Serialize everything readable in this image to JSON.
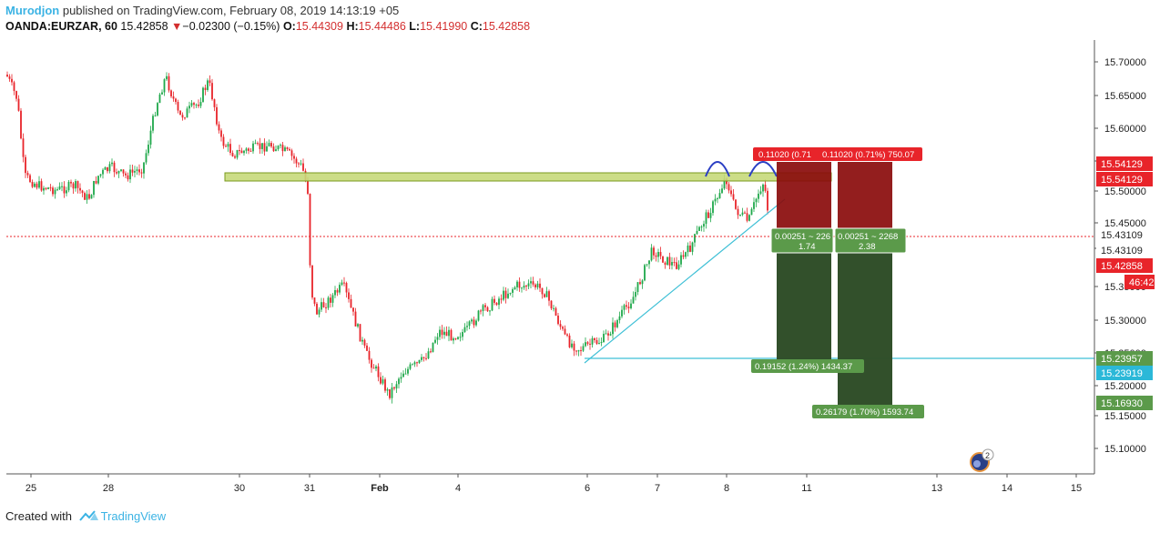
{
  "header": {
    "author": "Murodjon",
    "published_text": "published on TradingView.com, February 08, 2019 14:13:19 +05",
    "symbol": "OANDA:EURZAR, 60",
    "last": "15.42858",
    "change": "−0.02300 (−0.15%)",
    "open_label": "O:",
    "open": "15.44309",
    "high_label": "H:",
    "high": "15.44486",
    "low_label": "L:",
    "low": "15.41990",
    "close_label": "C:",
    "close": "15.42858"
  },
  "colors": {
    "up": "#1fa84a",
    "down": "#e8242a",
    "trendline": "#3fc0d6",
    "zone_fill": "#c6d97a",
    "zone_stroke": "#7a9a1e",
    "arc": "#2b3fc4",
    "stop_fill": "#8a0b0b",
    "target_fill": "#2e4d27",
    "price_line": "#e8242a",
    "label_red": "#e8242a",
    "label_green": "#5b9a4a",
    "label_cyan": "#2bb8d8"
  },
  "price_axis": {
    "ticks": [
      "15.70000",
      "15.65000",
      "15.60000",
      "15.55000",
      "15.50000",
      "15.45000",
      "15.40000",
      "15.35000",
      "15.30000",
      "15.25000",
      "15.20000",
      "15.15000",
      "15.10000"
    ],
    "labels": [
      {
        "text": "15.54129",
        "kind": "red"
      },
      {
        "text": "15.54129",
        "kind": "red"
      },
      {
        "text": "15.43109",
        "kind": "plain"
      },
      {
        "text": "15.43109",
        "kind": "plain"
      },
      {
        "text": "15.42858",
        "kind": "red"
      },
      {
        "text": "46:42",
        "kind": "red"
      },
      {
        "text": "15.23957",
        "kind": "green"
      },
      {
        "text": "15.23919",
        "kind": "cyan"
      },
      {
        "text": "15.16930",
        "kind": "green"
      }
    ]
  },
  "time_axis": {
    "labels": [
      "25",
      "28",
      "30",
      "31",
      "Feb",
      "4",
      "6",
      "7",
      "8",
      "11",
      "13",
      "14",
      "15"
    ]
  },
  "positions": [
    {
      "stop_label": "0.11020 (0.71",
      "mid_line1": "0.00251 ~ 226",
      "mid_line2": "1.74",
      "target_label": "0.19152 (1.24%) 1434.37"
    },
    {
      "stop_label": "0.11020 (0.71%) 750.07",
      "mid_line1": "0.00251 ~ 2268",
      "mid_line2": "2.38",
      "target_label": "0.26179 (1.70%) 1593.74"
    }
  ],
  "events": {
    "badge_count": "2"
  },
  "footer": {
    "created_with": "Created with",
    "brand": "TradingView"
  }
}
